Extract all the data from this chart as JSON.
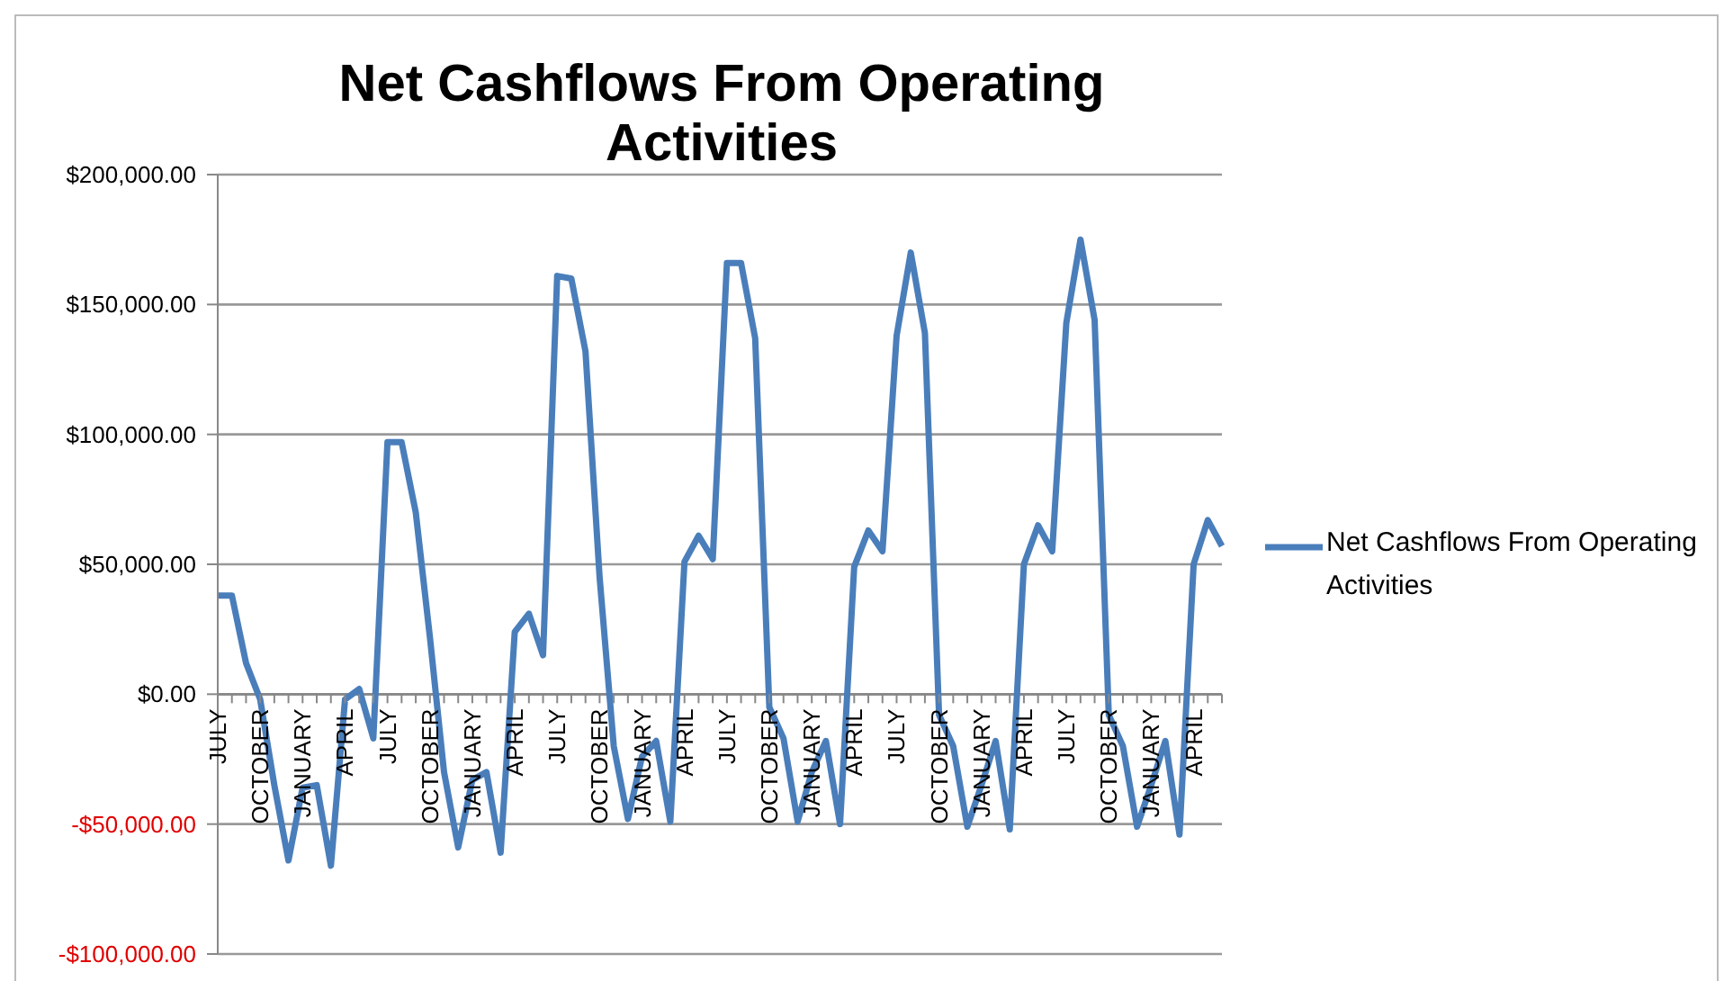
{
  "chart_data": {
    "type": "line",
    "title": "Net Cashflows From Operating Activities",
    "categories": [
      "JULY",
      null,
      null,
      "OCTOBER",
      null,
      null,
      "JANUARY",
      null,
      null,
      "APRIL",
      null,
      null,
      "JULY",
      null,
      null,
      "OCTOBER",
      null,
      null,
      "JANUARY",
      null,
      null,
      "APRIL",
      null,
      null,
      "JULY",
      null,
      null,
      "OCTOBER",
      null,
      null,
      "JANUARY",
      null,
      null,
      "APRIL",
      null,
      null,
      "JULY",
      null,
      null,
      "OCTOBER",
      null,
      null,
      "JANUARY",
      null,
      null,
      "APRIL",
      null,
      null,
      "JULY",
      null,
      null,
      "OCTOBER",
      null,
      null,
      "JANUARY",
      null,
      null,
      "APRIL",
      null,
      null,
      "JULY",
      null,
      null,
      "OCTOBER",
      null,
      null,
      "JANUARY",
      null,
      null,
      "APRIL",
      null,
      null
    ],
    "series": [
      {
        "name": "Net Cashflows From Operating Activities",
        "color": "#4a7ebb",
        "values": [
          38000,
          38000,
          12000,
          -2000,
          -35000,
          -64000,
          -36000,
          -35000,
          -66000,
          -2000,
          2000,
          -17000,
          97000,
          97000,
          70000,
          22000,
          -30000,
          -59000,
          -33000,
          -30000,
          -61000,
          24000,
          31000,
          15000,
          161000,
          160000,
          132000,
          45000,
          -20000,
          -48000,
          -24000,
          -18000,
          -49000,
          51000,
          61000,
          52000,
          166000,
          166000,
          137000,
          -5000,
          -17000,
          -49000,
          -30000,
          -18000,
          -50000,
          49000,
          63000,
          55000,
          138000,
          170000,
          139000,
          -8000,
          -20000,
          -51000,
          -35000,
          -18000,
          -52000,
          50000,
          65000,
          55000,
          143000,
          175000,
          144000,
          -8000,
          -20000,
          -51000,
          -35000,
          -18000,
          -54000,
          50000,
          67000,
          57000
        ]
      }
    ],
    "ylim": [
      -100000,
      200000
    ],
    "yticks": [
      {
        "value": -100000,
        "label": "-$100,000.00"
      },
      {
        "value": -50000,
        "label": "-$50,000.00"
      },
      {
        "value": 0,
        "label": "$0.00"
      },
      {
        "value": 50000,
        "label": "$50,000.00"
      },
      {
        "value": 100000,
        "label": "$100,000.00"
      },
      {
        "value": 150000,
        "label": "$150,000.00"
      },
      {
        "value": 200000,
        "label": "$200,000.00"
      }
    ],
    "grid": "y",
    "legend": "right",
    "marker": "none",
    "line_style": "solid"
  }
}
